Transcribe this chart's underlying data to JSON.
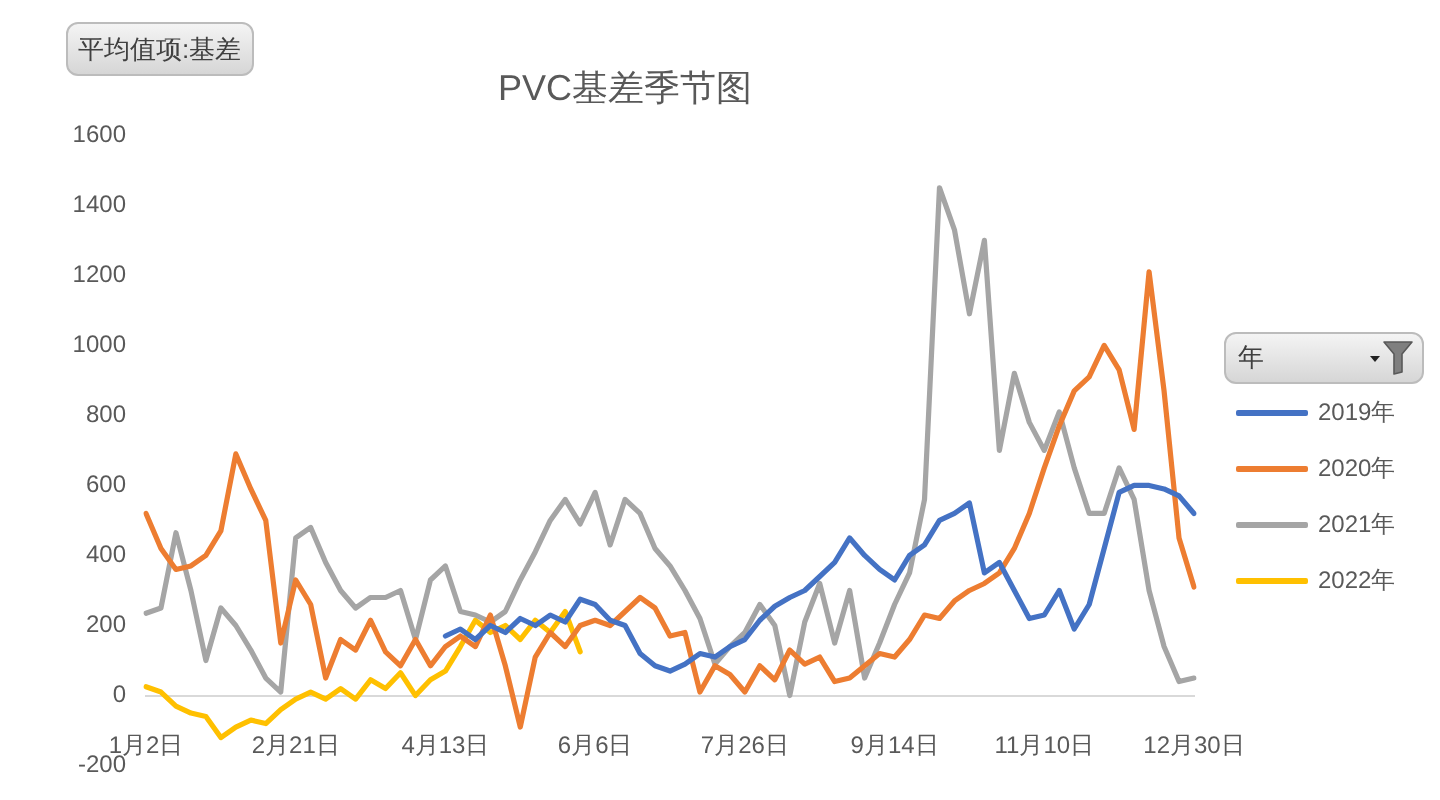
{
  "chart_data": {
    "type": "line",
    "title": "PVC基差季节图",
    "ylabel": "平均值项:基差",
    "legend_title": "年",
    "legend": "right",
    "grid": false,
    "marker": "none",
    "categories": [
      "1月2日",
      null,
      null,
      null,
      null,
      null,
      null,
      null,
      null,
      null,
      "2月21日",
      null,
      null,
      null,
      null,
      null,
      null,
      null,
      null,
      null,
      "4月13日",
      null,
      null,
      null,
      null,
      null,
      null,
      null,
      null,
      null,
      "6月6日",
      null,
      null,
      null,
      null,
      null,
      null,
      null,
      null,
      null,
      "7月26日",
      null,
      null,
      null,
      null,
      null,
      null,
      null,
      null,
      null,
      "9月14日",
      null,
      null,
      null,
      null,
      null,
      null,
      null,
      null,
      null,
      "11月10日",
      null,
      null,
      null,
      null,
      null,
      null,
      null,
      null,
      null,
      "12月30日"
    ],
    "ylim": [
      -200,
      1600
    ],
    "yticks": [
      -200,
      0,
      200,
      400,
      600,
      800,
      1000,
      1200,
      1400,
      1600
    ],
    "series": [
      {
        "name": "2019年",
        "color": "#4472c4",
        "values": [
          null,
          null,
          null,
          null,
          null,
          null,
          null,
          null,
          null,
          null,
          null,
          null,
          null,
          null,
          null,
          null,
          null,
          null,
          null,
          null,
          170,
          190,
          160,
          200,
          180,
          220,
          200,
          230,
          210,
          275,
          260,
          215,
          200,
          120,
          85,
          70,
          90,
          120,
          110,
          140,
          160,
          215,
          255,
          280,
          300,
          340,
          380,
          450,
          400,
          360,
          330,
          400,
          430,
          500,
          520,
          550,
          350,
          380,
          300,
          220,
          230,
          300,
          190,
          260,
          420,
          580,
          600,
          600,
          590,
          570,
          520
        ]
      },
      {
        "name": "2020年",
        "color": "#ed7d31",
        "values": [
          520,
          420,
          360,
          370,
          400,
          470,
          690,
          590,
          500,
          150,
          330,
          260,
          50,
          160,
          130,
          215,
          125,
          85,
          160,
          85,
          140,
          170,
          140,
          230,
          85,
          -90,
          110,
          180,
          140,
          200,
          215,
          200,
          240,
          280,
          250,
          170,
          180,
          10,
          85,
          60,
          10,
          85,
          45,
          130,
          90,
          110,
          40,
          50,
          85,
          120,
          110,
          160,
          230,
          220,
          270,
          300,
          320,
          350,
          420,
          520,
          650,
          770,
          870,
          910,
          1000,
          930,
          760,
          1210,
          870,
          450,
          310
        ]
      },
      {
        "name": "2021年",
        "color": "#a5a5a5",
        "values": [
          235,
          250,
          465,
          300,
          100,
          250,
          200,
          130,
          50,
          10,
          450,
          480,
          380,
          300,
          250,
          280,
          280,
          300,
          160,
          330,
          370,
          240,
          230,
          210,
          240,
          330,
          410,
          500,
          560,
          490,
          580,
          430,
          560,
          520,
          420,
          370,
          300,
          220,
          90,
          140,
          180,
          260,
          200,
          0,
          210,
          320,
          150,
          300,
          50,
          150,
          260,
          350,
          560,
          1450,
          1330,
          1090,
          1300,
          700,
          920,
          780,
          700,
          810,
          650,
          520,
          520,
          650,
          560,
          300,
          140,
          40,
          50
        ]
      },
      {
        "name": "2022年",
        "color": "#ffc000",
        "values": [
          25,
          10,
          -30,
          -50,
          -60,
          -120,
          -90,
          -70,
          -80,
          -40,
          -10,
          10,
          -10,
          20,
          -10,
          45,
          20,
          65,
          0,
          45,
          70,
          140,
          215,
          180,
          200,
          160,
          215,
          180,
          240,
          125,
          null,
          null,
          null,
          null,
          null,
          null,
          null,
          null,
          null,
          null,
          null,
          null,
          null,
          null,
          null,
          null,
          null,
          null,
          null,
          null,
          null,
          null,
          null,
          null,
          null,
          null,
          null,
          null,
          null,
          null,
          null,
          null,
          null,
          null,
          null,
          null,
          null,
          null,
          null,
          null,
          null
        ]
      }
    ]
  }
}
